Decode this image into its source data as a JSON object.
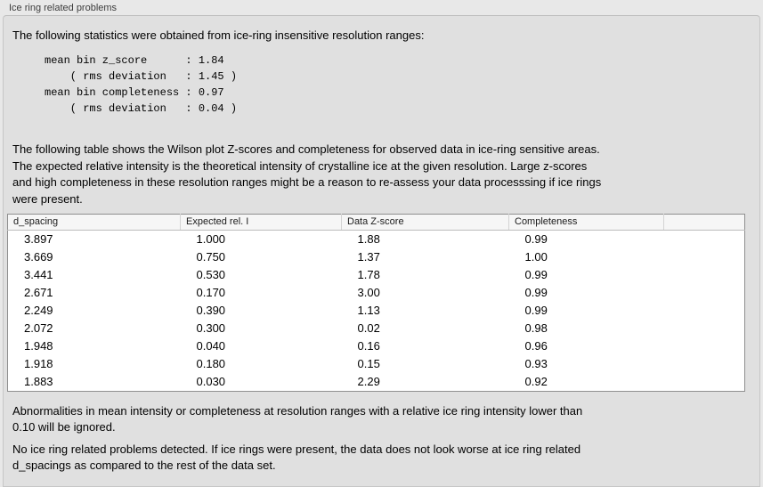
{
  "panel": {
    "title": "Ice ring related problems"
  },
  "intro": "The following statistics were obtained from ice-ring insensitive resolution ranges:",
  "stats_block": "mean bin z_score      : 1.84\n    ( rms deviation   : 1.45 )\nmean bin completeness : 0.97\n    ( rms deviation   : 0.04 )",
  "stats": {
    "mean_bin_z_score": "1.84",
    "z_score_rms_deviation": "1.45",
    "mean_bin_completeness": "0.97",
    "completeness_rms_deviation": "0.04"
  },
  "description": "The following table shows the Wilson plot Z-scores and completeness for observed data in ice-ring sensitive areas.\nThe expected relative intensity is the theoretical intensity of crystalline ice at the given resolution. Large z-scores\nand high completeness in these resolution ranges might be a reason to re-assess your data processsing if ice rings\nwere present.",
  "table": {
    "columns": [
      "d_spacing",
      "Expected rel. I",
      "Data Z-score",
      "Completeness"
    ],
    "rows": [
      [
        "3.897",
        "1.000",
        "1.88",
        "0.99"
      ],
      [
        "3.669",
        "0.750",
        "1.37",
        "1.00"
      ],
      [
        "3.441",
        "0.530",
        "1.78",
        "0.99"
      ],
      [
        "2.671",
        "0.170",
        "3.00",
        "0.99"
      ],
      [
        "2.249",
        "0.390",
        "1.13",
        "0.99"
      ],
      [
        "2.072",
        "0.300",
        "0.02",
        "0.98"
      ],
      [
        "1.948",
        "0.040",
        "0.16",
        "0.96"
      ],
      [
        "1.918",
        "0.180",
        "0.15",
        "0.93"
      ],
      [
        "1.883",
        "0.030",
        "2.29",
        "0.92"
      ]
    ]
  },
  "notes": {
    "ignore_note": "Abnormalities in mean intensity or completeness at resolution ranges with a relative ice ring intensity lower than\n0.10 will be ignored.",
    "conclusion": "No ice ring related problems detected. If ice rings were present, the data does not look worse at ice ring related\nd_spacings as compared to the rest of the data set."
  },
  "colors": {
    "page_bg": "#e8e8e8",
    "panel_bg": "#e0e0e0",
    "table_bg": "#ffffff",
    "table_header_bg": "#f6f6f6",
    "table_border": "#8f8f8f"
  }
}
